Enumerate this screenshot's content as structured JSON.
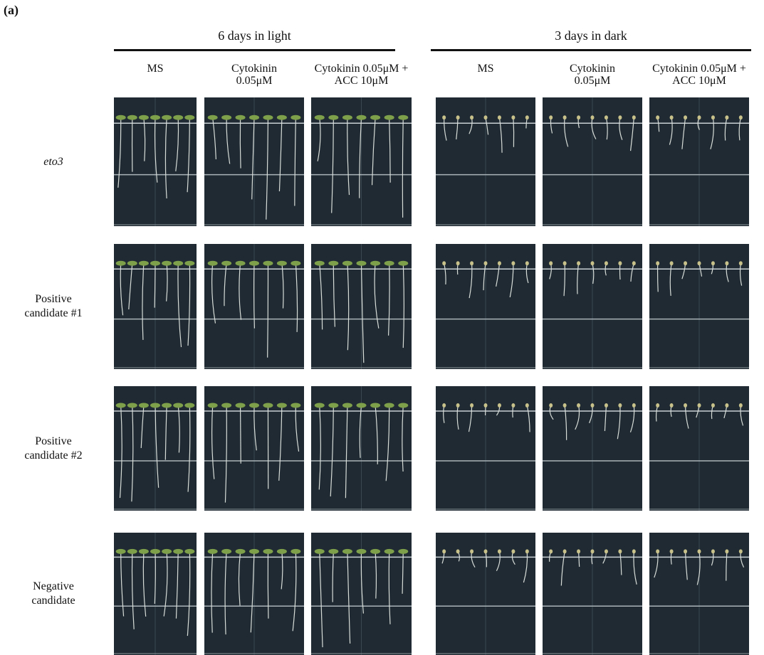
{
  "panel_label": "(a)",
  "groups": [
    {
      "title": "6 days in light",
      "columns": [
        [
          "MS"
        ],
        [
          "Cytokinin",
          "0.05μM"
        ],
        [
          "Cytokinin 0.05μM +",
          "ACC 10μM"
        ]
      ]
    },
    {
      "title": "3 days in dark",
      "columns": [
        [
          "MS"
        ],
        [
          "Cytokinin",
          "0.05μM"
        ],
        [
          "Cytokinin 0.05μM +",
          "ACC 10μM"
        ]
      ]
    }
  ],
  "rows": [
    [
      "eto3"
    ],
    [
      "Positive",
      "candidate #1"
    ],
    [
      "Positive",
      "candidate #2"
    ],
    [
      "Negative",
      "candidate"
    ]
  ]
}
